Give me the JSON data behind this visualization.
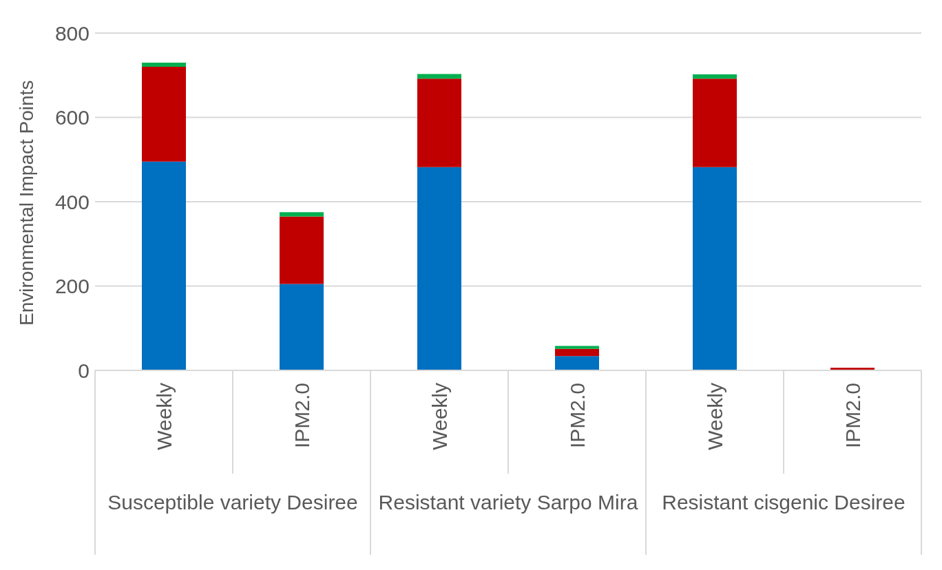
{
  "chart_data": {
    "type": "bar",
    "stacked": true,
    "ylabel": "Environmental Impact Points",
    "categories": [
      "Weekly",
      "IPM2.0",
      "Weekly",
      "IPM2.0",
      "Weekly",
      "IPM2.0"
    ],
    "series": [
      {
        "color": "#0070c0",
        "values": [
          495,
          205,
          482,
          34,
          482,
          0
        ]
      },
      {
        "color": "#c00000",
        "values": [
          225,
          160,
          210,
          17,
          210,
          6
        ]
      },
      {
        "color": "#00b050",
        "values": [
          10,
          10,
          11,
          7,
          10,
          0
        ]
      }
    ],
    "ylim": [
      0,
      800
    ],
    "yticks": [
      0,
      200,
      400,
      600,
      800
    ],
    "grid": "y",
    "legend": false,
    "annotations": [
      "Susceptible variety Desiree",
      "Resistant variety Sarpo Mira",
      "Resistant cisgenic Desiree"
    ]
  }
}
